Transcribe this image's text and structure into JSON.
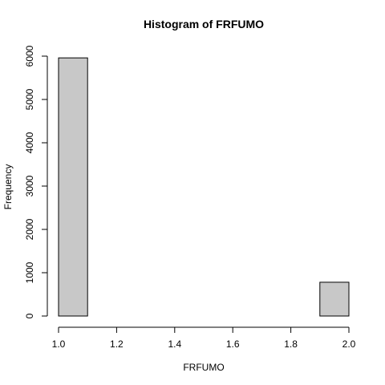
{
  "chart_data": {
    "type": "bar",
    "title": "Histogram of FRFUMO",
    "xlabel": "FRFUMO",
    "ylabel": "Frequency",
    "bin_width": 0.1,
    "bins": [
      {
        "start": 1.0,
        "end": 1.1,
        "count": 5960
      },
      {
        "start": 1.1,
        "end": 1.2,
        "count": 0
      },
      {
        "start": 1.2,
        "end": 1.3,
        "count": 0
      },
      {
        "start": 1.3,
        "end": 1.4,
        "count": 0
      },
      {
        "start": 1.4,
        "end": 1.5,
        "count": 0
      },
      {
        "start": 1.5,
        "end": 1.6,
        "count": 0
      },
      {
        "start": 1.6,
        "end": 1.7,
        "count": 0
      },
      {
        "start": 1.7,
        "end": 1.8,
        "count": 0
      },
      {
        "start": 1.8,
        "end": 1.9,
        "count": 0
      },
      {
        "start": 1.9,
        "end": 2.0,
        "count": 780
      }
    ],
    "xlim": [
      1.0,
      2.0
    ],
    "ylim": [
      0,
      6000
    ],
    "x_ticks": [
      "1.0",
      "1.2",
      "1.4",
      "1.6",
      "1.8",
      "2.0"
    ],
    "y_ticks": [
      "0",
      "1000",
      "2000",
      "3000",
      "4000",
      "5000",
      "6000"
    ],
    "grid": false,
    "bar_color": "#c8c8c8"
  }
}
